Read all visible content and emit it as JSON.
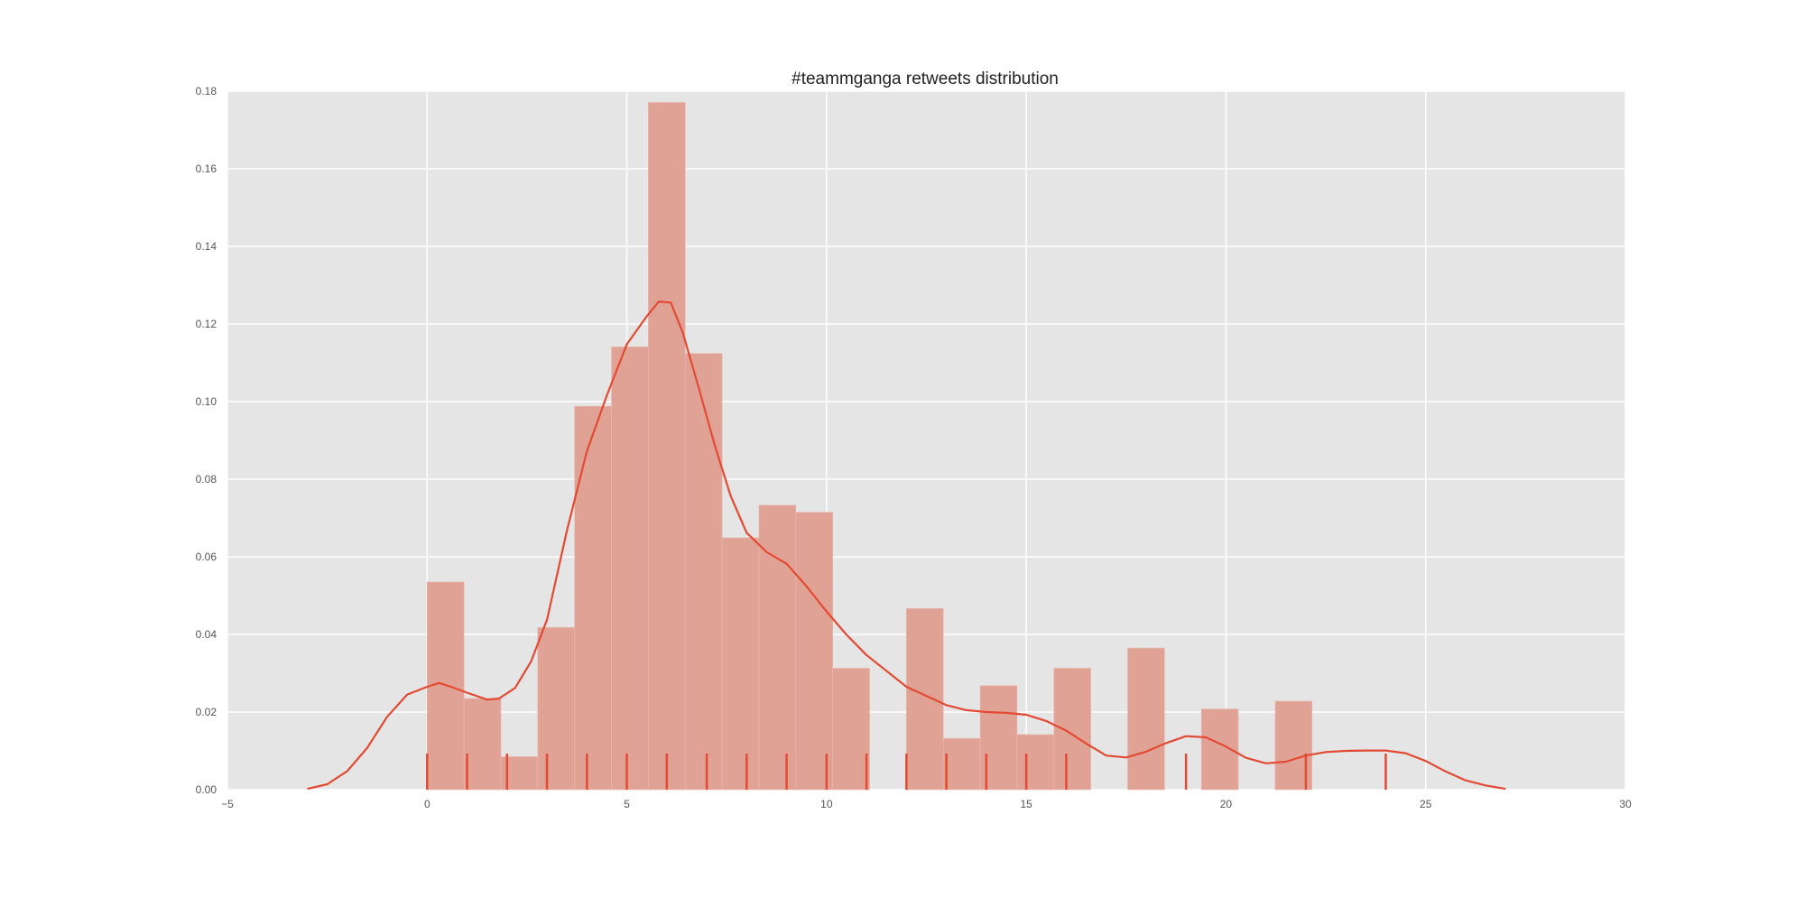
{
  "chart_data": {
    "type": "bar",
    "title": "#teammganga retweets distribution",
    "xlabel": "",
    "ylabel": "",
    "xlim": [
      -5,
      30
    ],
    "ylim": [
      0,
      0.18
    ],
    "x_ticks": [
      -5,
      0,
      5,
      10,
      15,
      20,
      25,
      30
    ],
    "x_tick_labels": [
      "−5",
      "0",
      "5",
      "10",
      "15",
      "20",
      "25",
      "30"
    ],
    "y_ticks": [
      0.0,
      0.02,
      0.04,
      0.06,
      0.08,
      0.1,
      0.12,
      0.14,
      0.16,
      0.18
    ],
    "y_tick_labels": [
      "0.00",
      "0.02",
      "0.04",
      "0.06",
      "0.08",
      "0.10",
      "0.12",
      "0.14",
      "0.16",
      "0.18"
    ],
    "grid": true,
    "colors": {
      "background": "#e5e5e5",
      "grid": "#ffffff",
      "bars": "#e1a296",
      "kde": "#e24a33",
      "rug": "#e24a33"
    },
    "histogram": {
      "bin_start": 0,
      "bin_width": 0.9231,
      "values": [
        0.0535,
        0.0235,
        0.0085,
        0.0418,
        0.0988,
        0.1141,
        0.1771,
        0.1124,
        0.0649,
        0.0733,
        0.0715,
        0.0313,
        0,
        0.0467,
        0.0132,
        0.0268,
        0.0142,
        0.0313,
        0,
        0.0365,
        0,
        0.0208,
        0,
        0.0228
      ]
    },
    "kde": {
      "x": [
        -3,
        -2.5,
        -2,
        -1.5,
        -1,
        -0.5,
        0,
        0.3,
        0.6,
        1,
        1.5,
        1.8,
        2.2,
        2.6,
        3,
        3.5,
        4,
        4.5,
        5,
        5.5,
        5.8,
        6.1,
        6.4,
        6.8,
        7.2,
        7.6,
        8,
        8.5,
        9,
        9.5,
        10,
        10.5,
        11,
        12,
        13,
        13.5,
        14,
        14.5,
        15,
        15.5,
        16,
        16.5,
        17,
        17.5,
        18,
        18.5,
        19,
        19.5,
        20,
        20.5,
        21,
        21.5,
        22,
        22.5,
        23,
        23.5,
        24,
        24.5,
        25,
        25.5,
        26,
        26.5,
        27
      ],
      "y": [
        0.0002,
        0.0014,
        0.0048,
        0.0108,
        0.0188,
        0.0245,
        0.0265,
        0.0275,
        0.0265,
        0.025,
        0.0232,
        0.0235,
        0.0262,
        0.033,
        0.0438,
        0.0668,
        0.0872,
        0.1016,
        0.1148,
        0.122,
        0.1258,
        0.1255,
        0.1178,
        0.1036,
        0.0888,
        0.0757,
        0.0662,
        0.0612,
        0.0582,
        0.0524,
        0.0459,
        0.0399,
        0.0347,
        0.0265,
        0.0218,
        0.0205,
        0.02,
        0.0198,
        0.0193,
        0.0177,
        0.0152,
        0.0119,
        0.0088,
        0.0083,
        0.0098,
        0.012,
        0.0138,
        0.0135,
        0.0111,
        0.0082,
        0.0068,
        0.0072,
        0.0088,
        0.0097,
        0.01,
        0.0101,
        0.0101,
        0.0094,
        0.0074,
        0.0047,
        0.0024,
        0.0011,
        0.0002
      ]
    },
    "rug": [
      0,
      1,
      2,
      3,
      4,
      5,
      6,
      7,
      8,
      9,
      10,
      11,
      12,
      13,
      14,
      15,
      16,
      19,
      22,
      24
    ]
  }
}
